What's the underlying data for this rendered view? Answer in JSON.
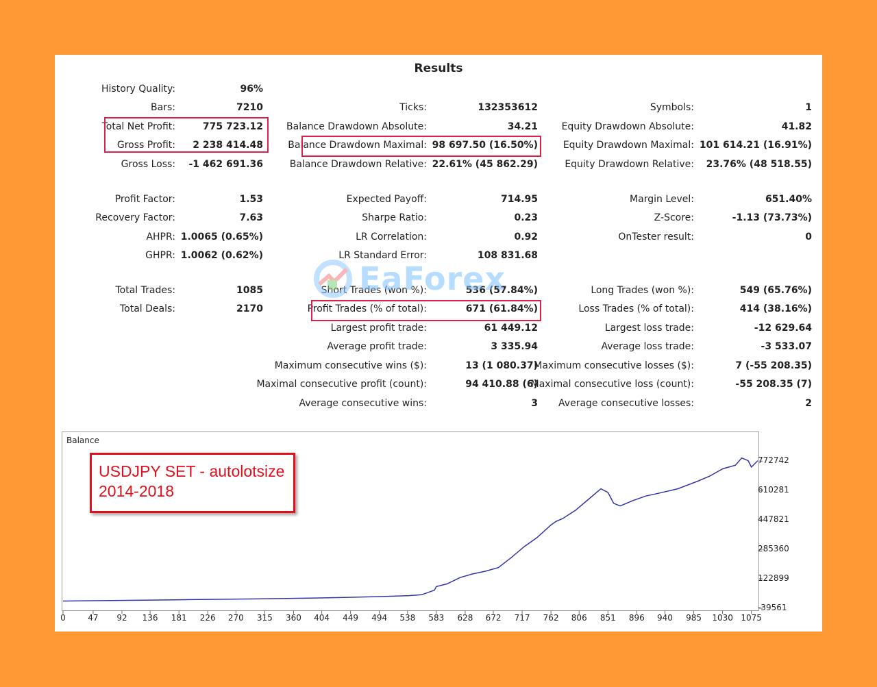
{
  "title": "Results",
  "stats": {
    "history_quality": {
      "label": "History Quality:",
      "value": "96%"
    },
    "bars": {
      "label": "Bars:",
      "value": "7210"
    },
    "total_net_profit": {
      "label": "Total Net Profit:",
      "value": "775 723.12"
    },
    "gross_profit": {
      "label": "Gross Profit:",
      "value": "2 238 414.48"
    },
    "gross_loss": {
      "label": "Gross Loss:",
      "value": "-1 462 691.36"
    },
    "profit_factor": {
      "label": "Profit Factor:",
      "value": "1.53"
    },
    "recovery_factor": {
      "label": "Recovery Factor:",
      "value": "7.63"
    },
    "ahpr": {
      "label": "AHPR:",
      "value": "1.0065 (0.65%)"
    },
    "ghpr": {
      "label": "GHPR:",
      "value": "1.0062 (0.62%)"
    },
    "total_trades": {
      "label": "Total Trades:",
      "value": "1085"
    },
    "total_deals": {
      "label": "Total Deals:",
      "value": "2170"
    },
    "ticks": {
      "label": "Ticks:",
      "value": "132353612"
    },
    "balance_dd_abs": {
      "label": "Balance Drawdown Absolute:",
      "value": "34.21"
    },
    "balance_dd_max": {
      "label": "Balance Drawdown Maximal:",
      "value": "98 697.50 (16.50%)"
    },
    "balance_dd_rel": {
      "label": "Balance Drawdown Relative:",
      "value": "22.61% (45 862.29)"
    },
    "expected_payoff": {
      "label": "Expected Payoff:",
      "value": "714.95"
    },
    "sharpe_ratio": {
      "label": "Sharpe Ratio:",
      "value": "0.23"
    },
    "lr_correlation": {
      "label": "LR Correlation:",
      "value": "0.92"
    },
    "lr_std_error": {
      "label": "LR Standard Error:",
      "value": "108 831.68"
    },
    "short_trades": {
      "label": "Short Trades (won %):",
      "value": "536 (57.84%)"
    },
    "profit_trades": {
      "label": "Profit Trades (% of total):",
      "value": "671 (61.84%)"
    },
    "largest_profit": {
      "label": "Largest profit trade:",
      "value": "61 449.12"
    },
    "average_profit": {
      "label": "Average profit trade:",
      "value": "3 335.94"
    },
    "max_consec_wins": {
      "label": "Maximum consecutive wins ($):",
      "value": "13 (1 080.37)"
    },
    "max_consec_profit": {
      "label": "Maximal consecutive profit (count):",
      "value": "94 410.88 (6)"
    },
    "avg_consec_wins": {
      "label": "Average consecutive wins:",
      "value": "3"
    },
    "symbols": {
      "label": "Symbols:",
      "value": "1"
    },
    "equity_dd_abs": {
      "label": "Equity Drawdown Absolute:",
      "value": "41.82"
    },
    "equity_dd_max": {
      "label": "Equity Drawdown Maximal:",
      "value": "101 614.21 (16.91%)"
    },
    "equity_dd_rel": {
      "label": "Equity Drawdown Relative:",
      "value": "23.76% (48 518.55)"
    },
    "margin_level": {
      "label": "Margin Level:",
      "value": "651.40%"
    },
    "z_score": {
      "label": "Z-Score:",
      "value": "-1.13 (73.73%)"
    },
    "ontester_result": {
      "label": "OnTester result:",
      "value": "0"
    },
    "long_trades": {
      "label": "Long Trades (won %):",
      "value": "549 (65.76%)"
    },
    "loss_trades": {
      "label": "Loss Trades (% of total):",
      "value": "414 (38.16%)"
    },
    "largest_loss": {
      "label": "Largest loss trade:",
      "value": "-12 629.64"
    },
    "average_loss": {
      "label": "Average loss trade:",
      "value": "-3 533.07"
    },
    "max_consec_losses": {
      "label": "Maximum consecutive losses ($):",
      "value": "7 (-55 208.35)"
    },
    "max_consec_loss": {
      "label": "Maximal consecutive loss (count):",
      "value": "-55 208.35 (7)"
    },
    "avg_consec_losses": {
      "label": "Average consecutive losses:",
      "value": "2"
    }
  },
  "watermark": {
    "text": "EaForex"
  },
  "annotation": {
    "line1": "USDJPY SET - autolotsize",
    "line2": "2014-2018"
  },
  "colors": {
    "background": "#FF9933",
    "highlight": "#d9224a",
    "line": "#3333aa",
    "annotation": "#e0101c"
  },
  "chart_data": {
    "type": "line",
    "title": "Balance",
    "x_ticks": [
      "0",
      "47",
      "92",
      "136",
      "181",
      "226",
      "270",
      "315",
      "360",
      "404",
      "449",
      "494",
      "538",
      "583",
      "628",
      "672",
      "717",
      "762",
      "806",
      "851",
      "896",
      "940",
      "985",
      "1030",
      "1075"
    ],
    "y_ticks": [
      "772742",
      "610281",
      "447821",
      "285360",
      "122899",
      "-39561"
    ],
    "xlim": [
      0,
      1085
    ],
    "ylim": [
      -39561,
      800000
    ],
    "series": [
      {
        "x": [
          0,
          50,
          100,
          150,
          200,
          250,
          300,
          350,
          400,
          450,
          500,
          540,
          560,
          580,
          583,
          600,
          620,
          640,
          660,
          680,
          700,
          720,
          740,
          762,
          770,
          780,
          800,
          820,
          840,
          851,
          860,
          870,
          890,
          910,
          930,
          960,
          990,
          1010,
          1030,
          1050,
          1060,
          1070,
          1075,
          1085
        ],
        "y": [
          0,
          2000,
          4000,
          6000,
          8000,
          10000,
          12000,
          14000,
          17000,
          21000,
          25000,
          30000,
          35000,
          60000,
          80000,
          95000,
          130000,
          150000,
          165000,
          185000,
          240000,
          300000,
          350000,
          420000,
          440000,
          455000,
          500000,
          560000,
          620000,
          600000,
          540000,
          525000,
          555000,
          580000,
          595000,
          620000,
          660000,
          690000,
          730000,
          750000,
          790000,
          775000,
          740000,
          775000
        ]
      }
    ]
  }
}
